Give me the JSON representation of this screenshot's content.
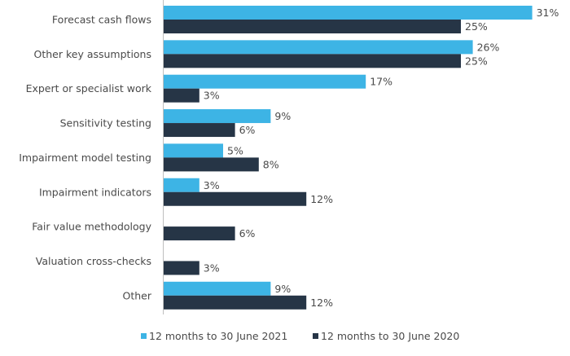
{
  "chart_data": {
    "type": "bar",
    "orientation": "horizontal",
    "categories": [
      "Forecast cash flows",
      "Other key assumptions",
      "Expert or specialist work",
      "Sensitivity testing",
      "Impairment model testing",
      "Impairment indicators",
      "Fair value methodology",
      "Valuation cross-checks",
      "Other"
    ],
    "series": [
      {
        "name": "12 months to 30 June 2021",
        "color": "#3db4e5",
        "values": [
          31,
          26,
          17,
          9,
          5,
          3,
          0,
          0,
          9
        ]
      },
      {
        "name": "12 months to 30 June 2020",
        "color": "#263546",
        "values": [
          25,
          25,
          3,
          6,
          8,
          12,
          6,
          3,
          12
        ]
      }
    ],
    "value_suffix": "%",
    "xlim": [
      0,
      32
    ],
    "grid": false,
    "legend": "bottom",
    "data_labels": true
  }
}
